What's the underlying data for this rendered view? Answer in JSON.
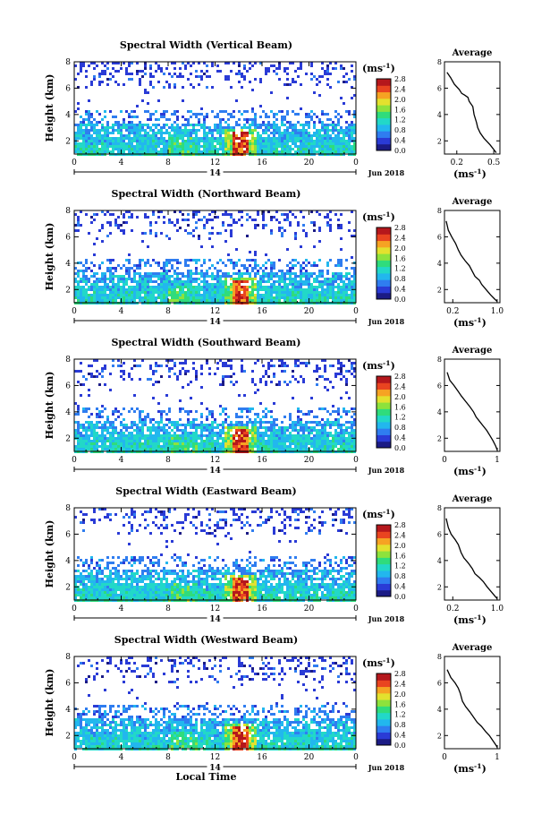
{
  "figure": {
    "x_axis_label": "Local Time",
    "colorbar_unit_base": "(ms",
    "colorbar_unit_exp": "-1",
    "colorbar_unit_close": ")",
    "date_label": "Jun 2018",
    "day_label": "14",
    "average_title": "Average",
    "ylabel_main": "Height (km)"
  },
  "colors": {
    "colormap": [
      "#1b1b85",
      "#2a3bd6",
      "#2f7df0",
      "#22b7ee",
      "#22d8c8",
      "#2fdc7c",
      "#8ee23c",
      "#e3e12e",
      "#f6a323",
      "#e94420",
      "#b5171c"
    ]
  },
  "chart_data": [
    {
      "type": "heatmap",
      "title": "Spectral Width (Vertical Beam)",
      "xlabel": "",
      "ylabel": "Height (km)",
      "x_ticks": [
        "0",
        "4",
        "8",
        "12",
        "16",
        "20",
        "0"
      ],
      "y_ticks": [
        "2",
        "4",
        "6",
        "8"
      ],
      "xlim": [
        0,
        24
      ],
      "ylim": [
        1,
        8
      ],
      "colorbar_ticks": [
        "2.8",
        "2.4",
        "2.0",
        "1.6",
        "1.2",
        "0.8",
        "0.4",
        "0.0"
      ],
      "colorbar_range": [
        0,
        2.8
      ],
      "average": {
        "type": "line",
        "title": "Average",
        "x_ticks": [
          "0.2",
          "0.5"
        ],
        "xlim": [
          0.1,
          0.55
        ],
        "y_ticks": [
          "2",
          "4",
          "6",
          "8"
        ],
        "ylim": [
          1,
          8
        ],
        "x": [
          0.12,
          0.15,
          0.18,
          0.22,
          0.24,
          0.26,
          0.29,
          0.3,
          0.33,
          0.34,
          0.36,
          0.37,
          0.39,
          0.42,
          0.47,
          0.52
        ],
        "y": [
          7.2,
          6.8,
          6.3,
          5.9,
          5.6,
          5.5,
          5.3,
          5.0,
          4.6,
          4.0,
          3.4,
          3.0,
          2.6,
          2.2,
          1.7,
          1.1
        ]
      }
    },
    {
      "type": "heatmap",
      "title": "Spectral Width (Northward Beam)",
      "xlabel": "",
      "ylabel": "Height (km)",
      "x_ticks": [
        "0",
        "4",
        "8",
        "12",
        "16",
        "20",
        "0"
      ],
      "y_ticks": [
        "2",
        "4",
        "6",
        "8"
      ],
      "xlim": [
        0,
        24
      ],
      "ylim": [
        1,
        8
      ],
      "colorbar_ticks": [
        "2.8",
        "2.4",
        "2.0",
        "1.6",
        "1.2",
        "0.8",
        "0.4",
        "0.0"
      ],
      "colorbar_range": [
        0,
        2.8
      ],
      "average": {
        "type": "line",
        "title": "Average",
        "x_ticks": [
          "0.2",
          "1.0"
        ],
        "xlim": [
          0.05,
          1.05
        ],
        "y_ticks": [
          "2",
          "4",
          "6",
          "8"
        ],
        "ylim": [
          1,
          8
        ],
        "x": [
          0.08,
          0.12,
          0.18,
          0.25,
          0.3,
          0.35,
          0.42,
          0.5,
          0.55,
          0.6,
          0.68,
          0.72,
          0.8,
          0.88,
          0.95,
          1.0
        ],
        "y": [
          7.2,
          6.5,
          6.0,
          5.5,
          5.0,
          4.6,
          4.2,
          3.8,
          3.4,
          3.0,
          2.7,
          2.4,
          2.0,
          1.6,
          1.3,
          1.1
        ]
      }
    },
    {
      "type": "heatmap",
      "title": "Spectral Width (Southward Beam)",
      "xlabel": "",
      "ylabel": "Height (km)",
      "x_ticks": [
        "0",
        "4",
        "8",
        "12",
        "16",
        "20",
        "0"
      ],
      "y_ticks": [
        "2",
        "4",
        "6",
        "8"
      ],
      "xlim": [
        0,
        24
      ],
      "ylim": [
        1,
        8
      ],
      "colorbar_ticks": [
        "2.8",
        "2.4",
        "2.0",
        "1.6",
        "1.2",
        "0.8",
        "0.4",
        "0.0"
      ],
      "colorbar_range": [
        0,
        2.8
      ],
      "average": {
        "type": "line",
        "title": "Average",
        "x_ticks": [
          "0",
          "1"
        ],
        "xlim": [
          0,
          1.05
        ],
        "y_ticks": [
          "2",
          "4",
          "6",
          "8"
        ],
        "ylim": [
          1,
          8
        ],
        "x": [
          0.05,
          0.1,
          0.18,
          0.25,
          0.32,
          0.4,
          0.48,
          0.55,
          0.6,
          0.66,
          0.72,
          0.8,
          0.86,
          0.92,
          0.97,
          1.0
        ],
        "y": [
          7.0,
          6.4,
          6.0,
          5.6,
          5.2,
          4.8,
          4.4,
          4.0,
          3.6,
          3.3,
          3.0,
          2.6,
          2.2,
          1.8,
          1.4,
          1.1
        ]
      }
    },
    {
      "type": "heatmap",
      "title": "Spectral Width (Eastward Beam)",
      "xlabel": "",
      "ylabel": "Height (km)",
      "x_ticks": [
        "0",
        "4",
        "8",
        "12",
        "16",
        "20",
        "0"
      ],
      "y_ticks": [
        "2",
        "4",
        "6",
        "8"
      ],
      "xlim": [
        0,
        24
      ],
      "ylim": [
        1,
        8
      ],
      "colorbar_ticks": [
        "2.8",
        "2.4",
        "2.0",
        "1.6",
        "1.2",
        "0.8",
        "0.4",
        "0.0"
      ],
      "colorbar_range": [
        0,
        2.8
      ],
      "average": {
        "type": "line",
        "title": "Average",
        "x_ticks": [
          "0.2",
          "1.0"
        ],
        "xlim": [
          0.05,
          1.05
        ],
        "y_ticks": [
          "2",
          "4",
          "6",
          "8"
        ],
        "ylim": [
          1,
          8
        ],
        "x": [
          0.08,
          0.12,
          0.17,
          0.24,
          0.3,
          0.35,
          0.4,
          0.48,
          0.55,
          0.6,
          0.68,
          0.75,
          0.82,
          0.9,
          0.96,
          1.0
        ],
        "y": [
          7.2,
          6.5,
          6.0,
          5.6,
          5.2,
          4.6,
          4.2,
          3.8,
          3.4,
          3.0,
          2.7,
          2.4,
          2.0,
          1.6,
          1.3,
          1.1
        ]
      }
    },
    {
      "type": "heatmap",
      "title": "Spectral Width (Westward Beam)",
      "xlabel": "Local Time",
      "ylabel": "Height (km)",
      "x_ticks": [
        "0",
        "4",
        "8",
        "12",
        "16",
        "20",
        "0"
      ],
      "y_ticks": [
        "2",
        "4",
        "6",
        "8"
      ],
      "xlim": [
        0,
        24
      ],
      "ylim": [
        1,
        8
      ],
      "colorbar_ticks": [
        "2.8",
        "2.4",
        "2.0",
        "1.6",
        "1.2",
        "0.8",
        "0.4",
        "0.0"
      ],
      "colorbar_range": [
        0,
        2.8
      ],
      "average": {
        "type": "line",
        "title": "Average",
        "x_ticks": [
          "0",
          "1"
        ],
        "xlim": [
          0,
          1.05
        ],
        "y_ticks": [
          "2",
          "4",
          "6",
          "8"
        ],
        "ylim": [
          1,
          8
        ],
        "x": [
          0.05,
          0.12,
          0.2,
          0.26,
          0.3,
          0.34,
          0.4,
          0.48,
          0.55,
          0.62,
          0.7,
          0.78,
          0.85,
          0.92,
          0.97,
          1.0
        ],
        "y": [
          7.0,
          6.4,
          6.0,
          5.6,
          5.2,
          4.6,
          4.2,
          3.8,
          3.4,
          3.0,
          2.7,
          2.3,
          2.0,
          1.6,
          1.3,
          1.1
        ]
      }
    }
  ]
}
